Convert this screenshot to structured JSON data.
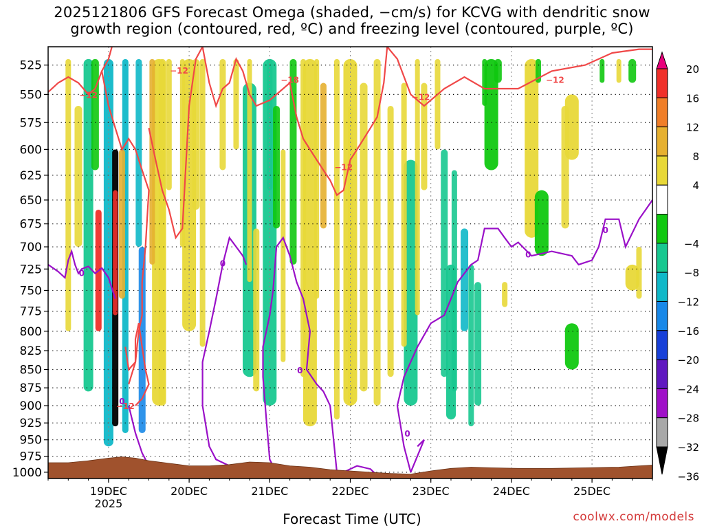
{
  "title": "2025121806 GFS Forecast Omega (shaded, −cm/s) for KCVG with dendritic snow\ngrowth region (contoured, red, ºC) and freezing level (contoured, purple, ºC)",
  "credit": "coolwx.com/models",
  "chart_data": {
    "type": "heatmap",
    "title": "2025121806 GFS Forecast Omega (shaded, −cm/s) for KCVG with dendritic snow growth region (contoured, red, ºC) and freezing level (contoured, purple, ºC)",
    "xlabel": "Forecast Time (UTC)",
    "ylabel": "",
    "x_ticks": [
      "19DEC",
      "20DEC",
      "21DEC",
      "22DEC",
      "23DEC",
      "24DEC",
      "25DEC"
    ],
    "x_sublabel": "2025",
    "xlim": [
      "2025-12-18T06",
      "2025-12-25T18"
    ],
    "y_ticks": [
      525,
      550,
      575,
      600,
      625,
      650,
      675,
      700,
      725,
      750,
      775,
      800,
      825,
      850,
      875,
      900,
      925,
      950,
      975,
      1000
    ],
    "ylim": [
      1010,
      510
    ],
    "y_scale": "log-pressure",
    "grid": true,
    "colorbar": {
      "labels": [
        "20",
        "16",
        "12",
        "8",
        "4",
        "−4",
        "−8",
        "−12",
        "−16",
        "−20",
        "−24",
        "−28",
        "−32",
        "−36"
      ],
      "colors": [
        "#e8007c",
        "#f0302a",
        "#f07e28",
        "#e6b030",
        "#e8d838",
        "#ffffff",
        "#10c810",
        "#18c890",
        "#10b8c8",
        "#1888e8",
        "#1840d8",
        "#6018c0",
        "#a010c8",
        "#a8a8a8",
        "#000000"
      ]
    },
    "omega_features": [
      {
        "x": "2025-12-18T18",
        "p_top": 520,
        "p_bot": 880,
        "value": -10
      },
      {
        "x": "2025-12-19T00",
        "p_top": 520,
        "p_bot": 960,
        "value": -12
      },
      {
        "x": "2025-12-19T02",
        "p_top": 600,
        "p_bot": 930,
        "value": -36
      },
      {
        "x": "2025-12-19T05",
        "p_top": 520,
        "p_bot": 940,
        "value": -14
      },
      {
        "x": "2025-12-18T21",
        "p_top": 660,
        "p_bot": 800,
        "value": 18
      },
      {
        "x": "2025-12-19T15",
        "p_top": 520,
        "p_bot": 900,
        "value": 6
      },
      {
        "x": "2025-12-20T00",
        "p_top": 520,
        "p_bot": 800,
        "value": 5
      },
      {
        "x": "2025-12-20T18",
        "p_top": 540,
        "p_bot": 860,
        "value": -8
      },
      {
        "x": "2025-12-21T00",
        "p_top": 520,
        "p_bot": 900,
        "value": -8
      },
      {
        "x": "2025-12-21T12",
        "p_top": 520,
        "p_bot": 930,
        "value": 5
      },
      {
        "x": "2025-12-22T00",
        "p_top": 520,
        "p_bot": 900,
        "value": 5
      },
      {
        "x": "2025-12-22T18",
        "p_top": 610,
        "p_bot": 900,
        "value": -8
      },
      {
        "x": "2025-12-23T06",
        "p_top": 720,
        "p_bot": 920,
        "value": -10
      },
      {
        "x": "2025-12-23T18",
        "p_top": 520,
        "p_bot": 620,
        "value": -6
      },
      {
        "x": "2025-12-24T06",
        "p_top": 520,
        "p_bot": 690,
        "value": 5
      },
      {
        "x": "2025-12-24T09",
        "p_top": 640,
        "p_bot": 710,
        "value": -6
      },
      {
        "x": "2025-12-24T18",
        "p_top": 550,
        "p_bot": 610,
        "value": 5
      },
      {
        "x": "2025-12-24T18",
        "p_top": 790,
        "p_bot": 850,
        "value": -6
      },
      {
        "x": "2025-12-25T12",
        "p_top": 720,
        "p_bot": 750,
        "value": 5
      }
    ],
    "contour_labels_red": [
      "−12",
      "−12",
      "−18",
      "−12",
      "−12",
      "−12",
      "−12"
    ],
    "contour_labels_purple": [
      "0",
      "0",
      "0",
      "0",
      "0",
      "0",
      "0"
    ]
  }
}
